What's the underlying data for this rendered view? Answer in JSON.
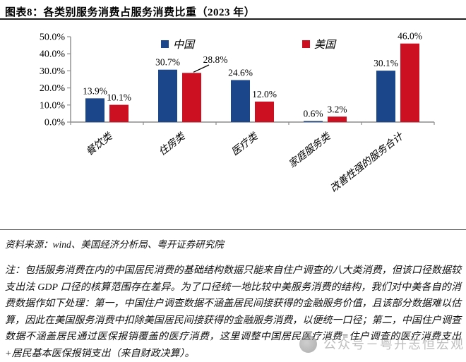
{
  "header": {
    "title": "图表8：各类别服务消费占服务消费比重（2023 年）"
  },
  "chart_data": {
    "type": "bar",
    "title": "各类别服务消费占服务消费比重（2023年）",
    "categories": [
      "餐饮类",
      "住房类",
      "医疗类",
      "家庭服务类",
      "改善性强的服务合计"
    ],
    "series": [
      {
        "name": "中国",
        "color": "#1B4689",
        "values": [
          13.9,
          30.7,
          24.6,
          0.6,
          30.1
        ]
      },
      {
        "name": "美国",
        "color": "#CC1021",
        "values": [
          10.1,
          28.8,
          12.0,
          3.2,
          46.0
        ]
      }
    ],
    "data_labels": [
      [
        "13.9%",
        "30.7%",
        "24.6%",
        "0.6%",
        "30.1%"
      ],
      [
        "10.1%",
        "28.8%",
        "12.0%",
        "3.2%",
        "46.0%"
      ]
    ],
    "ylim": [
      0,
      50
    ],
    "ytick_step": 10,
    "ytick_labels": [
      "0.0%",
      "10.0%",
      "20.0%",
      "30.0%",
      "40.0%",
      "50.0%"
    ],
    "legend_position": "top",
    "grid": false,
    "axis_color": "#8C8C8C"
  },
  "footer": {
    "source": "资料来源：wind、美国经济分析局、粤开证券研究院",
    "note": "注：包括服务消费在内的中国居民消费的基础结构数据只能来自住户调查的八大类消费，但该口径数据较支出法 GDP 口径的核算范围存在差异。为了口径统一地比较中美服务消费的结构，我们对中美各自的消费数据作如下处理：第一，中国住户调查数据不涵盖居民间接获得的金融服务价值，且该部分数据难以估算，因此在美国服务消费中扣除美国居民间接获得的金融服务消费，以便统一口径；第二，中国住户调查数据不涵盖居民通过医保报销覆盖的医疗消费，这里调整中国居民医疗消费=住户调查的医疗消费支出+居民基本医保报销支出（来自财政决算）。"
  },
  "watermark": {
    "text": "公众号－粤开志恒宏观"
  }
}
